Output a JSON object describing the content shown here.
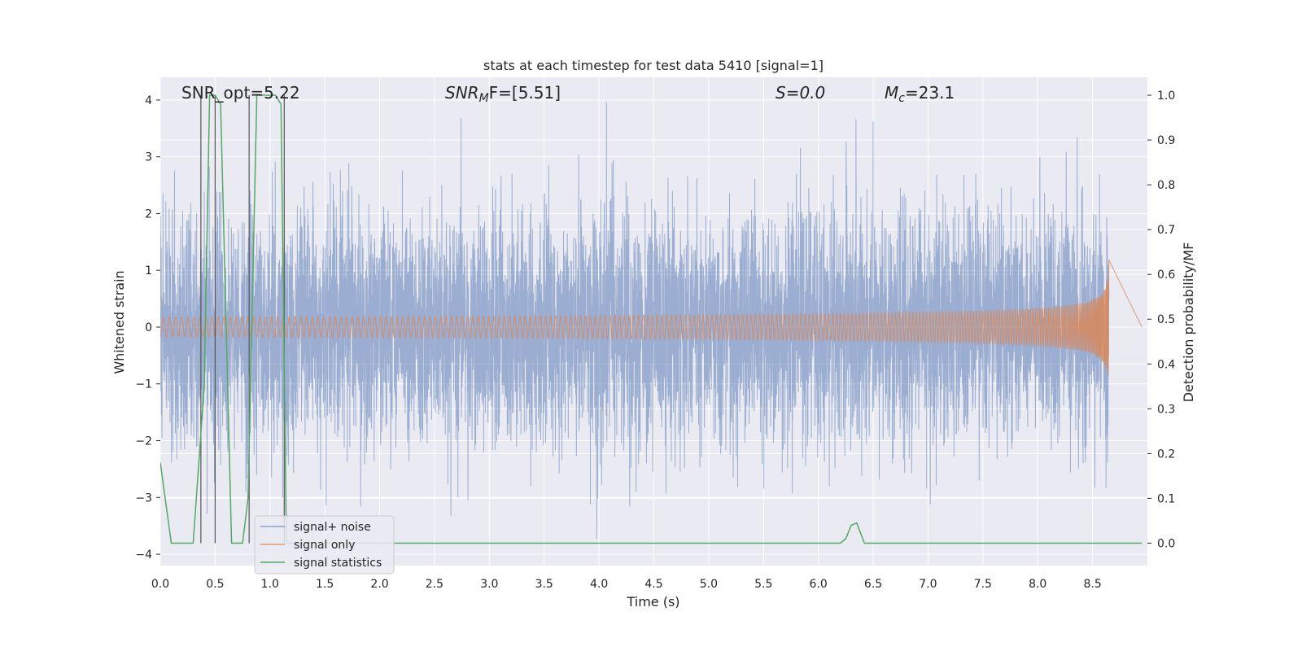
{
  "chart_data": {
    "type": "line",
    "title": "stats at each timestep for test data 5410 [signal=1]",
    "xlabel": "Time (s)",
    "ylabel": "Whitened strain",
    "ylabel_right": "Detection probability/MF",
    "xlim": [
      0.0,
      9.0
    ],
    "ylim": [
      -4.2,
      4.4
    ],
    "ylim_right": [
      -0.05,
      1.04
    ],
    "x_ticks": [
      "0.0",
      "0.5",
      "1.0",
      "1.5",
      "2.0",
      "2.5",
      "3.0",
      "3.5",
      "4.0",
      "4.5",
      "5.0",
      "5.5",
      "6.0",
      "6.5",
      "7.0",
      "7.5",
      "8.0",
      "8.5"
    ],
    "y_ticks": [
      "4",
      "3",
      "2",
      "1",
      "0",
      "−1",
      "−2",
      "−3",
      "−4"
    ],
    "y_tick_values": [
      4,
      3,
      2,
      1,
      0,
      -1,
      -2,
      -3,
      -4
    ],
    "y_right_ticks": [
      "1.0",
      "0.9",
      "0.8",
      "0.7",
      "0.6",
      "0.5",
      "0.4",
      "0.3",
      "0.2",
      "0.1",
      "0.0"
    ],
    "y_right_tick_values": [
      1.0,
      0.9,
      0.8,
      0.7,
      0.6,
      0.5,
      0.4,
      0.3,
      0.2,
      0.1,
      0.0
    ],
    "right_grid_values": [
      0.9,
      0.7,
      0.6,
      0.4,
      0.3,
      0.2,
      0.1
    ],
    "grid": true,
    "legend_position": "lower-left",
    "colors": {
      "background": "#eaeaf2",
      "grid": "#ffffff",
      "noise": "#4c72b0",
      "signal": "#dd8452",
      "stats": "#55a868",
      "vlines": "#555555"
    },
    "annotations": {
      "snr_opt": "SNR_opt=5.22",
      "snr_mf_main": "SNR",
      "snr_mf_sub": "M",
      "snr_mf_rest": "F=[5.51]",
      "s_value": "S=0.0",
      "mc_main": "M",
      "mc_sub": "c",
      "mc_rest": "=23.1"
    },
    "series": [
      {
        "name": "signal+ noise",
        "description_type": "noise",
        "sigma": 1.0,
        "t_max": 8.65
      },
      {
        "name": "signal only",
        "description_type": "chirp",
        "chirp_peak_time": 8.65,
        "chirp_peak_amplitude": 1.2
      },
      {
        "name": "signal statistics",
        "x": [
          0.0,
          0.1,
          0.3,
          0.4,
          0.45,
          0.5,
          0.55,
          0.65,
          0.7,
          0.75,
          0.8,
          0.88,
          0.95,
          1.05,
          1.1,
          1.15,
          1.2,
          1.3,
          6.2,
          6.25,
          6.3,
          6.35,
          6.42,
          6.5,
          8.95
        ],
        "values": [
          0.18,
          0.0,
          0.0,
          0.35,
          1.0,
          1.0,
          0.98,
          0.0,
          0.0,
          0.0,
          0.1,
          1.0,
          1.0,
          1.0,
          0.98,
          0.0,
          0.0,
          0.0,
          0.0,
          0.01,
          0.04,
          0.045,
          0.0,
          0.0,
          0.0
        ]
      }
    ],
    "detection_vlines": [
      0.37,
      0.5,
      0.81,
      1.13
    ]
  }
}
